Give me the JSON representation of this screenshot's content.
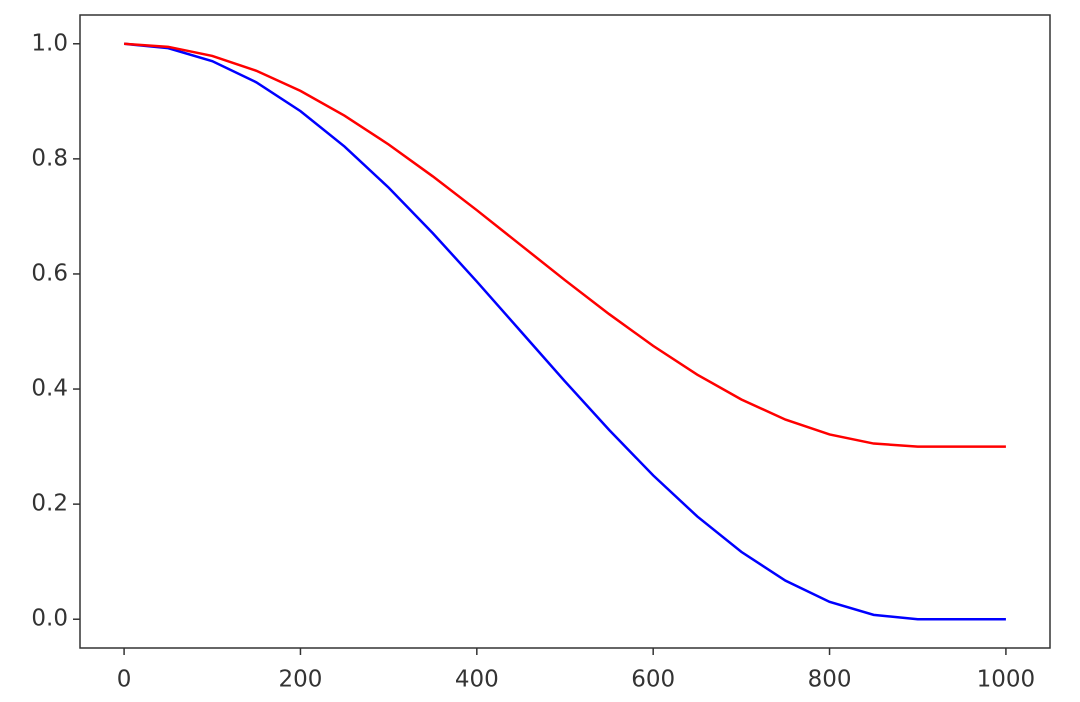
{
  "chart_data": {
    "type": "line",
    "x": [
      0,
      50,
      100,
      150,
      200,
      250,
      300,
      350,
      400,
      450,
      500,
      550,
      600,
      650,
      700,
      750,
      800,
      850,
      900,
      950,
      1000
    ],
    "series": [
      {
        "color": "#0000ff",
        "values": [
          1,
          0.9924,
          0.9698,
          0.933,
          0.883,
          0.8214,
          0.75,
          0.671,
          0.5868,
          0.5,
          0.4132,
          0.329,
          0.25,
          0.1786,
          0.117,
          0.067,
          0.0302,
          0.0076,
          0,
          0,
          0
        ]
      },
      {
        "color": "#ff0000",
        "values": [
          1,
          0.9947,
          0.9789,
          0.9531,
          0.9181,
          0.875,
          0.825,
          0.7697,
          0.7108,
          0.65,
          0.5892,
          0.5303,
          0.475,
          0.425,
          0.3819,
          0.3469,
          0.3211,
          0.3053,
          0.3,
          0.3,
          0.3
        ]
      }
    ],
    "xlim": [
      -50,
      1050
    ],
    "ylim": [
      -0.05,
      1.05
    ],
    "xticks": [
      0,
      200,
      400,
      600,
      800,
      1000
    ],
    "yticks": [
      {
        "value": 0,
        "label": "0.0"
      },
      {
        "value": 0.2,
        "label": "0.2"
      },
      {
        "value": 0.4,
        "label": "0.4"
      },
      {
        "value": 0.6,
        "label": "0.6"
      },
      {
        "value": 0.8,
        "label": "0.8"
      },
      {
        "value": 1,
        "label": "1.0"
      }
    ],
    "grid": false
  }
}
